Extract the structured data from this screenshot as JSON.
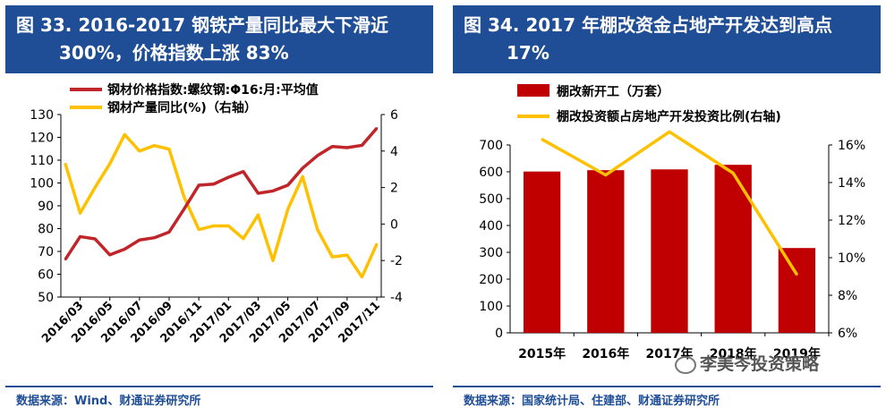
{
  "left": {
    "title_line1": "图 33. 2016-2017 钢铁产量同比最大下滑近",
    "title_line2": "300%，价格指数上涨 83%",
    "source": "数据来源：Wind、财通证券研究所"
  },
  "right": {
    "title_line1": "图 34. 2017 年棚改资金占地产开发达到高点",
    "title_line2": "17%",
    "source": "数据来源：国家统计局、住建部、财通证券研究所",
    "watermark": "李美岑投资策略"
  },
  "colors": {
    "title_bg": "#1f4e96",
    "price": "#c0252a",
    "yoy": "#ffc000",
    "bar": "#c00000"
  },
  "chart_data": [
    {
      "type": "line",
      "series": [
        {
          "name": "钢材价格指数:螺纹钢:Φ16:月:平均值",
          "axis": "left",
          "values": [
            66.5,
            76.5,
            75.5,
            68.5,
            71,
            75,
            76,
            78.5,
            88.5,
            99,
            99.5,
            102.5,
            105,
            95.5,
            96.5,
            99,
            106.5,
            112,
            116,
            115.5,
            116.5,
            124
          ]
        },
        {
          "name": "钢材产量同比(%)（右轴）",
          "axis": "right",
          "values": [
            3.3,
            0.6,
            2,
            3.3,
            4.9,
            4,
            4.3,
            4.1,
            1.5,
            -0.3,
            -0.1,
            -0.1,
            -0.8,
            0.5,
            -2,
            0.8,
            2.6,
            -0.3,
            -1.8,
            -1.7,
            -2.9,
            -1.1
          ]
        }
      ],
      "x_tick_labels": [
        "2016/03",
        "2016/05",
        "2016/07",
        "2016/09",
        "2016/11",
        "2017/01",
        "2017/03",
        "2017/05",
        "2017/07",
        "2017/09",
        "2017/11"
      ],
      "y_left": {
        "min": 50,
        "max": 130,
        "step": 10
      },
      "y_right": {
        "min": -4,
        "max": 6,
        "step": 2
      },
      "legend_position": "top-left",
      "grid": false
    },
    {
      "type": "bar",
      "categories": [
        "2015年",
        "2016年",
        "2017年",
        "2018年",
        "2019年"
      ],
      "series": [
        {
          "name": "棚改新开工（万套）",
          "kind": "bar",
          "axis": "left",
          "values": [
            601,
            606,
            609,
            626,
            316
          ]
        },
        {
          "name": "棚改投资额占房地产开发投资比例(右轴)",
          "kind": "line",
          "axis": "right",
          "values": [
            16.3,
            14.4,
            16.7,
            14.5,
            9.1
          ]
        }
      ],
      "y_left": {
        "min": 0,
        "max": 700,
        "step": 100
      },
      "y_right": {
        "min": 6,
        "max": 16,
        "step": 2,
        "tick_format": "%"
      },
      "legend_position": "top-left",
      "grid": false
    }
  ]
}
